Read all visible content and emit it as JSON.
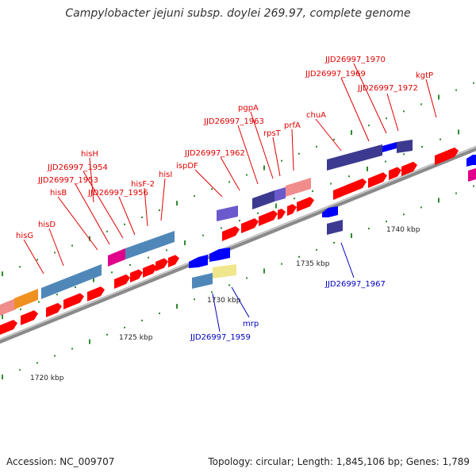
{
  "title": "Campylobacter jejuni subsp. doylei 269.97, complete genome",
  "footer": {
    "accession": "Accession: NC_009707",
    "summary": "Topology: circular; Length: 1,845,106 bp; Genes: 1,789"
  },
  "scale_labels": [
    "1720 kbp",
    "1725 kbp",
    "1730 kbp",
    "1735 kbp",
    "1740 kbp"
  ],
  "colors": {
    "backbone": "#888888",
    "forward_gene": "#ff0000",
    "reverse_gene": "#0000ff",
    "feature_steel": "#4f88b8",
    "feature_indigo": "#3c3a90",
    "feature_pink": "#f08c8c",
    "feature_magenta": "#e0008c",
    "feature_orange": "#f09020",
    "feature_khaki": "#f0e68c",
    "feature_lavender": "#6a5acd",
    "tick_green": "#2e8b2e",
    "label_forward": "#e00000",
    "label_reverse": "#0000c0"
  },
  "forward_gene_labels": [
    "hisG",
    "hisD",
    "hisB",
    "JJD26997_1953",
    "JJD26997_1954",
    "hisH",
    "JJD26997_1956",
    "hisF-2",
    "hisI",
    "ispDF",
    "JJD26997_1962",
    "JJD26997_1963",
    "pgpA",
    "rpsT",
    "prfA",
    "chuA",
    "JJD26997_1969",
    "JJD26997_1970",
    "JJD26997_1972",
    "kgtP"
  ],
  "reverse_gene_labels": [
    "JJD26997_1959",
    "mrp",
    "JJD26997_1967"
  ]
}
